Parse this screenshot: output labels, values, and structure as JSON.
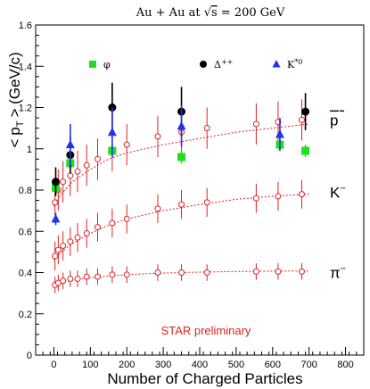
{
  "chart_data": {
    "type": "scatter",
    "title": "Au + Au at √s = 200 GeV",
    "title_parts": {
      "pre": "Au + Au at ",
      "sqrt": "√",
      "s": "s",
      "post": " = 200 GeV"
    },
    "xlabel": "Number of Charged Particles",
    "ylabel": "< pT > (GeV/c)",
    "ylabel_parts": {
      "open": "<",
      "p": "p",
      "sub": "T",
      "close": "> (GeV/c)"
    },
    "xlim": [
      -50,
      850
    ],
    "ylim": [
      0,
      1.6
    ],
    "x_ticks": [
      0,
      100,
      200,
      300,
      400,
      500,
      600,
      700,
      800
    ],
    "x_tick_labels": [
      "0",
      "100",
      "200",
      "300",
      "400",
      "500",
      "600",
      "700",
      "800"
    ],
    "y_ticks": [
      0,
      0.2,
      0.4,
      0.6,
      0.8,
      1.0,
      1.2,
      1.4,
      1.6
    ],
    "y_tick_labels": [
      "0",
      "0.2",
      "0.4",
      "0.6",
      "0.8",
      "1",
      "1.2",
      "1.4",
      "1.6"
    ],
    "grid": false,
    "annotation": "STAR preliminary",
    "legend_items": [
      {
        "label": "φ",
        "marker": "square",
        "color": "#22dd22"
      },
      {
        "label": "Δ++",
        "base": "Δ",
        "sup": "++",
        "marker": "circle",
        "color": "#000000"
      },
      {
        "label": "K*0",
        "base": "K",
        "sup": "*0",
        "marker": "triangle",
        "color": "#2233ee"
      }
    ],
    "curve_labels": [
      {
        "text": "p̄",
        "base": "p",
        "sup": "",
        "overline": true,
        "y": 1.14
      },
      {
        "text": "K⁻",
        "base": "K",
        "sup": "−",
        "overline": false,
        "y": 0.79
      },
      {
        "text": "π⁻",
        "base": "π",
        "sup": "−",
        "overline": false,
        "y": 0.4
      }
    ],
    "series": [
      {
        "name": "p̄",
        "marker": "open-circle",
        "color": "#dd2222",
        "x": [
          3,
          12,
          25,
          45,
          65,
          90,
          120,
          160,
          200,
          285,
          350,
          420,
          555,
          615,
          680
        ],
        "y": [
          0.74,
          0.8,
          0.84,
          0.87,
          0.89,
          0.92,
          0.95,
          0.99,
          1.02,
          1.06,
          1.08,
          1.1,
          1.12,
          1.13,
          1.14
        ],
        "err": [
          0.1,
          0.1,
          0.1,
          0.1,
          0.1,
          0.1,
          0.1,
          0.1,
          0.1,
          0.1,
          0.1,
          0.1,
          0.1,
          0.1,
          0.1
        ],
        "fit": [
          [
            0,
            0.72
          ],
          [
            20,
            0.78
          ],
          [
            50,
            0.84
          ],
          [
            100,
            0.9
          ],
          [
            150,
            0.95
          ],
          [
            200,
            0.98
          ],
          [
            300,
            1.02
          ],
          [
            400,
            1.05
          ],
          [
            500,
            1.08
          ],
          [
            600,
            1.1
          ],
          [
            700,
            1.12
          ]
        ]
      },
      {
        "name": "K⁻",
        "marker": "open-circle",
        "color": "#dd2222",
        "x": [
          3,
          12,
          25,
          45,
          65,
          90,
          120,
          160,
          200,
          285,
          350,
          420,
          555,
          615,
          680
        ],
        "y": [
          0.48,
          0.51,
          0.53,
          0.55,
          0.57,
          0.59,
          0.62,
          0.64,
          0.66,
          0.71,
          0.73,
          0.74,
          0.76,
          0.77,
          0.78
        ],
        "err": [
          0.07,
          0.07,
          0.07,
          0.07,
          0.07,
          0.07,
          0.07,
          0.07,
          0.07,
          0.07,
          0.07,
          0.07,
          0.07,
          0.07,
          0.07
        ],
        "fit": [
          [
            0,
            0.46
          ],
          [
            20,
            0.5
          ],
          [
            50,
            0.54
          ],
          [
            100,
            0.59
          ],
          [
            150,
            0.63
          ],
          [
            200,
            0.66
          ],
          [
            300,
            0.7
          ],
          [
            400,
            0.73
          ],
          [
            500,
            0.755
          ],
          [
            600,
            0.77
          ],
          [
            700,
            0.78
          ]
        ]
      },
      {
        "name": "π⁻",
        "marker": "open-circle",
        "color": "#dd2222",
        "x": [
          3,
          12,
          25,
          45,
          65,
          90,
          120,
          160,
          200,
          285,
          350,
          420,
          555,
          615,
          680
        ],
        "y": [
          0.34,
          0.35,
          0.36,
          0.37,
          0.37,
          0.38,
          0.38,
          0.39,
          0.39,
          0.4,
          0.4,
          0.4,
          0.405,
          0.405,
          0.405
        ],
        "err": [
          0.04,
          0.04,
          0.04,
          0.04,
          0.04,
          0.04,
          0.04,
          0.04,
          0.04,
          0.04,
          0.04,
          0.04,
          0.04,
          0.04,
          0.04
        ],
        "fit": [
          [
            0,
            0.34
          ],
          [
            30,
            0.355
          ],
          [
            60,
            0.365
          ],
          [
            100,
            0.375
          ],
          [
            200,
            0.39
          ],
          [
            300,
            0.398
          ],
          [
            400,
            0.402
          ],
          [
            500,
            0.405
          ],
          [
            600,
            0.407
          ],
          [
            700,
            0.408
          ]
        ]
      },
      {
        "name": "φ",
        "marker": "square",
        "color": "#22dd22",
        "x": [
          5,
          45,
          160,
          350,
          620,
          690
        ],
        "y": [
          0.81,
          0.93,
          0.99,
          0.96,
          1.02,
          0.99
        ],
        "err": [
          0.02,
          0.03,
          0.03,
          0.03,
          0.03,
          0.03
        ]
      },
      {
        "name": "Δ++",
        "marker": "circle",
        "color": "#000000",
        "x": [
          5,
          45,
          160,
          350,
          690
        ],
        "y": [
          0.84,
          0.97,
          1.2,
          1.18,
          1.18
        ],
        "err": [
          0.07,
          0.09,
          0.12,
          0.12,
          0.09
        ]
      },
      {
        "name": "K*0",
        "marker": "triangle",
        "color": "#2233ee",
        "x": [
          5,
          45,
          160,
          350,
          620
        ],
        "y": [
          0.66,
          1.02,
          1.08,
          1.11,
          1.07
        ],
        "err": [
          0.03,
          0.1,
          0.12,
          0.1,
          0.08
        ]
      }
    ]
  }
}
